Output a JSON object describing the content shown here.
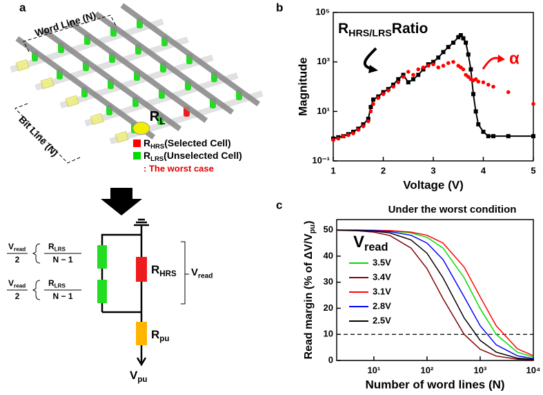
{
  "diagram": {
    "panel_label": "a",
    "word_line_label": "Word Line (N)",
    "bit_line_label": "Bit Line (N)",
    "rl_label": {
      "symbol": "R",
      "sub": "L"
    },
    "legend": [
      {
        "symbol": "R",
        "sub": "HRS",
        "text": "(Selected Cell)",
        "color": "#ff0000"
      },
      {
        "symbol": "R",
        "sub": "LRS",
        "text": "(Unselected Cell)",
        "color": "#00dd00"
      }
    ],
    "note": ": The worst case",
    "circuit": {
      "half_voltage": [
        {
          "num": "V",
          "num_sub": "read",
          "den": "2"
        },
        {
          "num": "V",
          "num_sub": "read",
          "den": "2"
        }
      ],
      "resistance": [
        {
          "num": "R",
          "num_sub": "LRS",
          "den": "N − 1"
        },
        {
          "num": "R",
          "num_sub": "LRS",
          "den": "N − 1"
        }
      ],
      "r_hrs": {
        "symbol": "R",
        "sub": "HRS"
      },
      "v_read": {
        "symbol": "V",
        "sub": "read"
      },
      "r_pu": {
        "symbol": "R",
        "sub": "pu"
      },
      "v_pu": {
        "symbol": "V",
        "sub": "pu"
      }
    }
  },
  "chart_data": [
    {
      "type": "scatter",
      "panel_label": "b",
      "xlabel": "Voltage (V)",
      "ylabel": "Magnitude",
      "x": [
        1,
        1.1,
        1.2,
        1.3,
        1.4,
        1.5,
        1.6,
        1.7,
        1.75,
        1.8,
        1.9,
        2.0,
        2.1,
        2.2,
        2.3,
        2.4,
        2.5,
        2.6,
        2.7,
        2.8,
        2.9,
        3.0,
        3.1,
        3.2,
        3.3,
        3.4,
        3.5,
        3.55,
        3.6,
        3.65,
        3.7,
        3.75,
        3.8,
        3.85,
        3.9,
        4.0,
        4.1,
        4.2,
        4.5,
        5.0
      ],
      "series": [
        {
          "color": "#000000",
          "marker": "square",
          "connect": true,
          "values": [
            0.8,
            0.9,
            1,
            1.2,
            1.5,
            2,
            3,
            5,
            15,
            30,
            40,
            60,
            80,
            120,
            200,
            300,
            150,
            200,
            300,
            500,
            800,
            1000,
            1500,
            2500,
            4000,
            6000,
            10000,
            12000,
            9000,
            6000,
            2000,
            500,
            50,
            10,
            3,
            1.5,
            1,
            1,
            1,
            1
          ]
        },
        {
          "color": "#ff0000",
          "marker": "circle",
          "connect": false,
          "values": [
            0.7,
            0.8,
            1,
            1.1,
            1.3,
            1.8,
            2.5,
            4,
            10,
            20,
            35,
            50,
            70,
            100,
            150,
            250,
            400,
            300,
            500,
            600,
            700,
            800,
            600,
            700,
            900,
            1000,
            700,
            600,
            500,
            300,
            250,
            200,
            180,
            200,
            160,
            150,
            120,
            100,
            60,
            20
          ]
        }
      ],
      "ratio_label": {
        "symbol": "R",
        "sub": "HRS/LRS",
        "text": "Ratio"
      },
      "alpha_label": "α",
      "xlim": [
        1,
        5
      ],
      "xticks": [
        1,
        2,
        3,
        4,
        5
      ],
      "ylog": true,
      "ylim": [
        0.1,
        100000
      ],
      "yticks": [
        {
          "value": 0.1,
          "label": "10⁻¹"
        },
        {
          "value": 10,
          "label": "10¹"
        },
        {
          "value": 1000,
          "label": "10³"
        },
        {
          "value": 100000,
          "label": "10⁵"
        }
      ]
    },
    {
      "type": "line",
      "panel_label": "c",
      "title": "Under the worst condition",
      "xlabel": "Number of word lines (N)",
      "ylabel": {
        "text": "Read margin (% of ΔV/V",
        "sub": "pu",
        "end": ")"
      },
      "legend_title": {
        "symbol": "V",
        "sub": "read"
      },
      "x": [
        2,
        5,
        10,
        20,
        50,
        100,
        200,
        500,
        1000,
        2000,
        5000,
        10000
      ],
      "series": [
        {
          "name": "3.5V",
          "color": "#00dd00",
          "values": [
            50.0,
            50.0,
            49.9,
            49.7,
            48.9,
            47.2,
            43.1,
            31.7,
            19.9,
            10.0,
            3.2,
            1.3
          ]
        },
        {
          "name": "3.4V",
          "color": "#800000",
          "values": [
            49.9,
            49.7,
            49.2,
            47.9,
            43.1,
            35.2,
            23.7,
            10.0,
            4.3,
            1.7,
            0.5,
            0.2
          ]
        },
        {
          "name": "3.1V",
          "color": "#ff0000",
          "values": [
            50.0,
            50.0,
            49.9,
            49.8,
            49.2,
            48.0,
            45.0,
            35.8,
            24.4,
            13.3,
            4.5,
            1.8
          ]
        },
        {
          "name": "2.8V",
          "color": "#0000ff",
          "values": [
            50.0,
            49.9,
            49.8,
            49.4,
            48.0,
            45.0,
            38.7,
            24.4,
            13.3,
            6.0,
            1.8,
            0.7
          ]
        },
        {
          "name": "2.5V",
          "color": "#000000",
          "values": [
            50.0,
            49.8,
            49.6,
            48.9,
            46.2,
            41.1,
            31.7,
            16.3,
            7.7,
            3.2,
            0.9,
            0.4
          ]
        }
      ],
      "reference_line": 10,
      "xlog": true,
      "xlim": [
        2,
        10000
      ],
      "xticks": [
        {
          "value": 10,
          "label": "10¹"
        },
        {
          "value": 100,
          "label": "10²"
        },
        {
          "value": 1000,
          "label": "10³"
        },
        {
          "value": 10000,
          "label": "10⁴"
        }
      ],
      "ylim": [
        0,
        54
      ],
      "yticks": [
        0,
        10,
        20,
        30,
        40,
        50
      ]
    }
  ]
}
